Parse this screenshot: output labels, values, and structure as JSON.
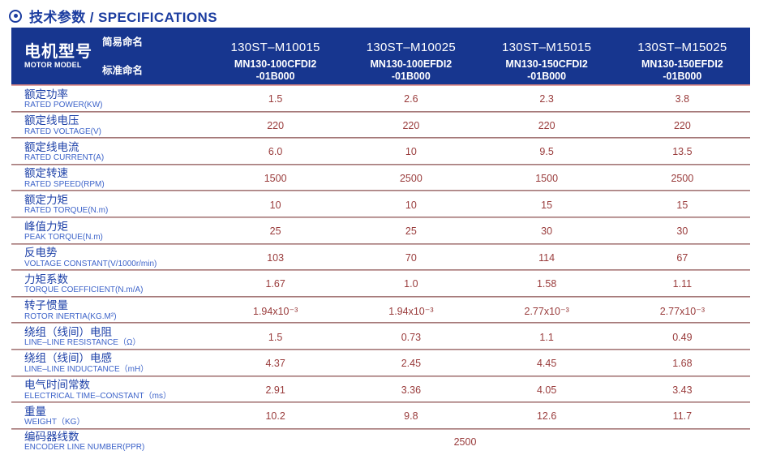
{
  "page_title": "技术参数 / SPECIFICATIONS",
  "colors": {
    "header_bg": "#17368f",
    "title_blue": "#1c3da0",
    "label_cn_blue": "#1e41a8",
    "label_en_blue": "#3d63c9",
    "value_maroon": "#993b3b",
    "divider_pink": "#dcc2c2"
  },
  "header": {
    "motor_model_cn": "电机型号",
    "motor_model_en": "MOTOR MODEL",
    "simple_name_label": "简易命名",
    "standard_name_label": "标准命名",
    "models": [
      {
        "simple": "130ST–M10015",
        "standard_line1": "MN130-100CFDI2",
        "standard_line2": "-01B000"
      },
      {
        "simple": "130ST–M10025",
        "standard_line1": "MN130-100EFDI2",
        "standard_line2": "-01B000"
      },
      {
        "simple": "130ST–M15015",
        "standard_line1": "MN130-150CFDI2",
        "standard_line2": "-01B000"
      },
      {
        "simple": "130ST–M15025",
        "standard_line1": "MN130-150EFDI2",
        "standard_line2": "-01B000"
      }
    ]
  },
  "table": {
    "rows": [
      {
        "cn": "额定功率",
        "en": "RATED POWER(KW)",
        "values": [
          "1.5",
          "2.6",
          "2.3",
          "3.8"
        ]
      },
      {
        "cn": "额定线电压",
        "en": "RATED VOLTAGE(V)",
        "values": [
          "220",
          "220",
          "220",
          "220"
        ]
      },
      {
        "cn": "额定线电流",
        "en": "RATED CURRENT(A)",
        "values": [
          "6.0",
          "10",
          "9.5",
          "13.5"
        ]
      },
      {
        "cn": "额定转速",
        "en": "RATED SPEED(RPM)",
        "values": [
          "1500",
          "2500",
          "1500",
          "2500"
        ]
      },
      {
        "cn": "额定力矩",
        "en": "RATED TORQUE(N.m)",
        "values": [
          "10",
          "10",
          "15",
          "15"
        ]
      },
      {
        "cn": "峰值力矩",
        "en": "PEAK TORQUE(N.m)",
        "values": [
          "25",
          "25",
          "30",
          "30"
        ]
      },
      {
        "cn": "反电势",
        "en": "VOLTAGE CONSTANT(V/1000r/min)",
        "values": [
          "103",
          "70",
          "114",
          "67"
        ]
      },
      {
        "cn": "力矩系数",
        "en": "TORQUE COEFFICIENT(N.m/A)",
        "values": [
          "1.67",
          "1.0",
          "1.58",
          "1.11"
        ]
      },
      {
        "cn": "转子惯量",
        "en": "ROTOR INERTIA(KG.M²)",
        "values": [
          "1.94x10⁻³",
          "1.94x10⁻³",
          "2.77x10⁻³",
          "2.77x10⁻³"
        ]
      },
      {
        "cn": "绕组（线间）电阻",
        "en": "LINE–LINE RESISTANCE（Ω）",
        "values": [
          "1.5",
          "0.73",
          "1.1",
          "0.49"
        ]
      },
      {
        "cn": "绕组（线间）电感",
        "en": "LINE–LINE INDUCTANCE（mH）",
        "values": [
          "4.37",
          "2.45",
          "4.45",
          "1.68"
        ]
      },
      {
        "cn": "电气时间常数",
        "en": "ELECTRICAL TIME–CONSTANT（ms）",
        "values": [
          "2.91",
          "3.36",
          "4.05",
          "3.43"
        ]
      },
      {
        "cn": "重量",
        "en": "WEIGHT（KG）",
        "values": [
          "10.2",
          "9.8",
          "12.6",
          "11.7"
        ]
      }
    ],
    "encoder_row": {
      "cn": "编码器线数",
      "en": "ENCODER LINE NUMBER(PPR)",
      "span_value": "2500"
    }
  }
}
